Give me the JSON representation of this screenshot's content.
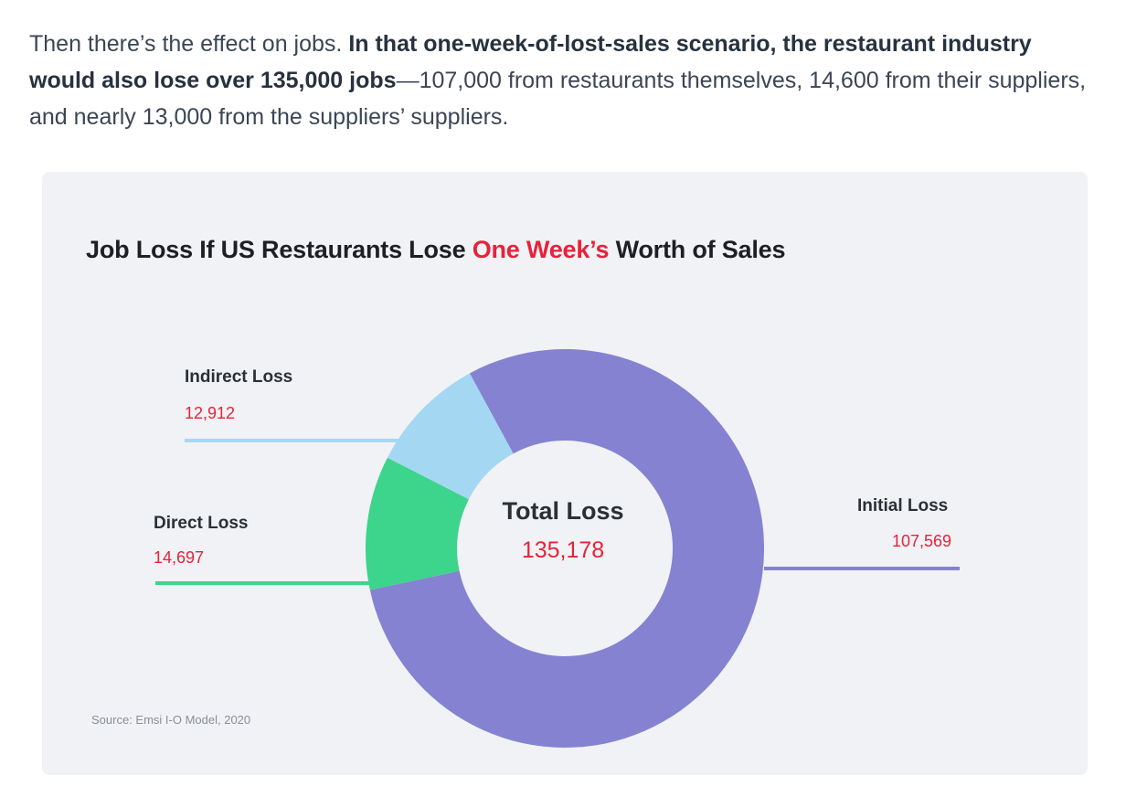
{
  "article": {
    "text_before": "Then there’s the effect on jobs. ",
    "text_bold": "In that one-week-of-lost-sales scenario, the restaurant industry would also lose over 135,000 jobs",
    "text_after": "—107,000 from restaurants themselves, 14,600 from their suppliers, and nearly 13,000 from the suppliers’ suppliers."
  },
  "chart_data": {
    "type": "pie",
    "style": "donut",
    "title_parts": [
      "Job Loss If US Restaurants Lose ",
      "One Week’s",
      " Worth of Sales"
    ],
    "center": {
      "label": "Total Loss",
      "value_text": "135,178",
      "value": 135178
    },
    "slices": [
      {
        "name": "Initial Loss",
        "value": 107569,
        "value_text": "107,569",
        "color": "#8582d2"
      },
      {
        "name": "Direct Loss",
        "value": 14697,
        "value_text": "14,697",
        "color": "#3dd48c"
      },
      {
        "name": "Indirect Loss",
        "value": 12912,
        "value_text": "12,912",
        "color": "#a4d8f2"
      }
    ],
    "source": "Source: Emsi I-O Model, 2020",
    "colors": {
      "highlight": "#e7223a",
      "background": "#f1f2f5"
    }
  }
}
